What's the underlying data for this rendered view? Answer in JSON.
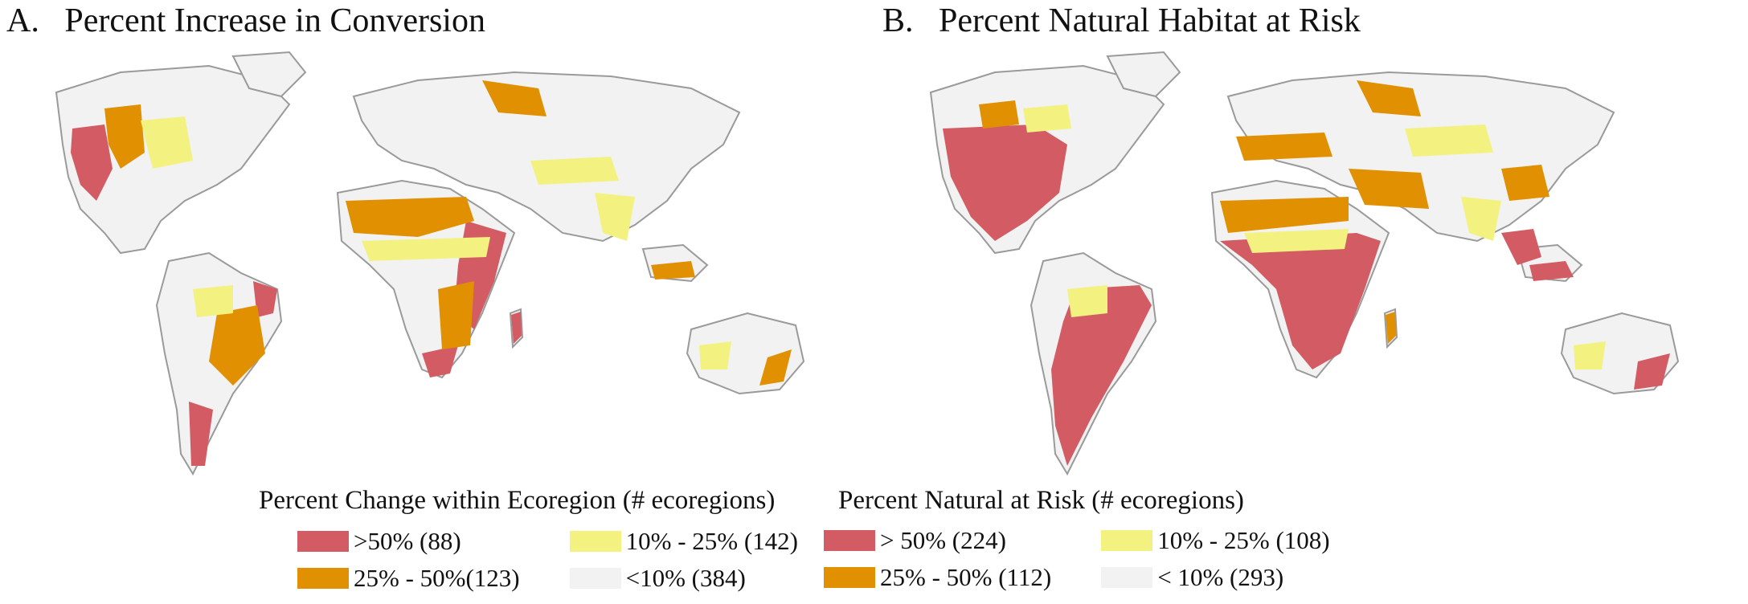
{
  "colors": {
    "red": "#d35b63",
    "orange": "#e09000",
    "yellow": "#f3f180",
    "gray": "#f2f2f2",
    "border": "#9a9a9a"
  },
  "panel_a": {
    "title": "A.   Percent Increase in Conversion",
    "legend_title": "Percent  Change within Ecoregion (# ecoregions)",
    "legend": [
      {
        "label": ">50% (88)",
        "color": "red"
      },
      {
        "label": "10% - 25% (142)",
        "color": "yellow"
      },
      {
        "label": "25% - 50%(123)",
        "color": "orange"
      },
      {
        "label": "<10% (384)",
        "color": "gray"
      }
    ]
  },
  "panel_b": {
    "title": "B.   Percent Natural Habitat at Risk",
    "legend_title": "Percent Natural at Risk (# ecoregions)",
    "legend": [
      {
        "label": "> 50% (224)",
        "color": "red"
      },
      {
        "label": "10% - 25% (108)",
        "color": "yellow"
      },
      {
        "label": "25% - 50% (112)",
        "color": "orange"
      },
      {
        "label": "< 10% (293)",
        "color": "gray"
      }
    ]
  }
}
